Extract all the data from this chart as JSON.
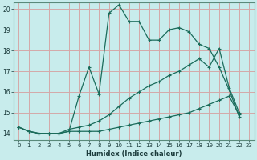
{
  "xlabel": "Humidex (Indice chaleur)",
  "ylabel": "",
  "xlim": [
    -0.5,
    23.5
  ],
  "ylim": [
    13.7,
    20.3
  ],
  "yticks": [
    14,
    15,
    16,
    17,
    18,
    19,
    20
  ],
  "xticks": [
    0,
    1,
    2,
    3,
    4,
    5,
    6,
    7,
    8,
    9,
    10,
    11,
    12,
    13,
    14,
    15,
    16,
    17,
    18,
    19,
    20,
    21,
    22,
    23
  ],
  "bg_color": "#c8ecec",
  "plot_bg_color": "#c8ecec",
  "grid_color": "#d4a8a8",
  "line_color": "#1a6b5a",
  "series1": [
    14.3,
    14.1,
    14.0,
    14.0,
    14.0,
    14.1,
    15.8,
    17.2,
    15.9,
    19.8,
    20.2,
    19.4,
    19.4,
    18.5,
    18.5,
    19.0,
    19.1,
    18.9,
    18.3,
    18.1,
    17.2,
    16.1,
    14.8,
    null
  ],
  "series2": [
    14.3,
    14.1,
    14.0,
    14.0,
    14.0,
    14.1,
    14.1,
    14.1,
    14.1,
    14.2,
    14.3,
    14.4,
    14.5,
    14.6,
    14.7,
    14.8,
    14.9,
    15.0,
    15.2,
    15.4,
    15.6,
    15.8,
    14.9,
    null
  ],
  "series3": [
    14.3,
    14.1,
    14.0,
    14.0,
    14.0,
    14.2,
    14.3,
    14.4,
    14.6,
    14.9,
    15.3,
    15.7,
    16.0,
    16.3,
    16.5,
    16.8,
    17.0,
    17.3,
    17.6,
    17.2,
    18.1,
    16.2,
    15.0,
    null
  ]
}
